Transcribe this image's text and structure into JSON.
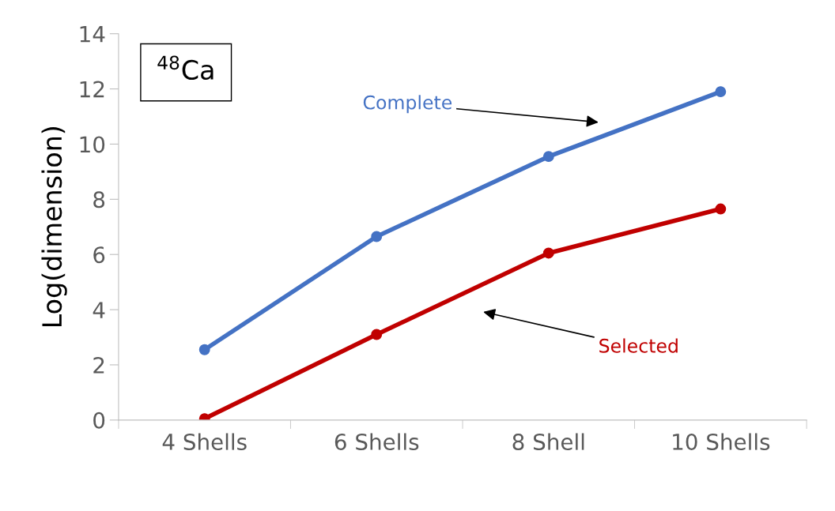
{
  "chart_data": {
    "type": "line",
    "ylabel": "Log(dimension)",
    "categories": [
      "4 Shells",
      "6 Shells",
      "8 Shell",
      "10 Shells"
    ],
    "series": [
      {
        "name": "Complete",
        "color": "#4472c4",
        "values": [
          2.55,
          6.65,
          9.55,
          11.9
        ]
      },
      {
        "name": "Selected",
        "color": "#c00000",
        "values": [
          0.05,
          3.1,
          6.05,
          7.65
        ]
      }
    ],
    "ylim": [
      0,
      14
    ],
    "yticks": [
      0,
      2,
      4,
      6,
      8,
      10,
      12,
      14
    ],
    "marker": "circle",
    "line_style": "solid",
    "grid": false,
    "legend": false,
    "annotations": [
      "$^{48}$Ca"
    ]
  }
}
